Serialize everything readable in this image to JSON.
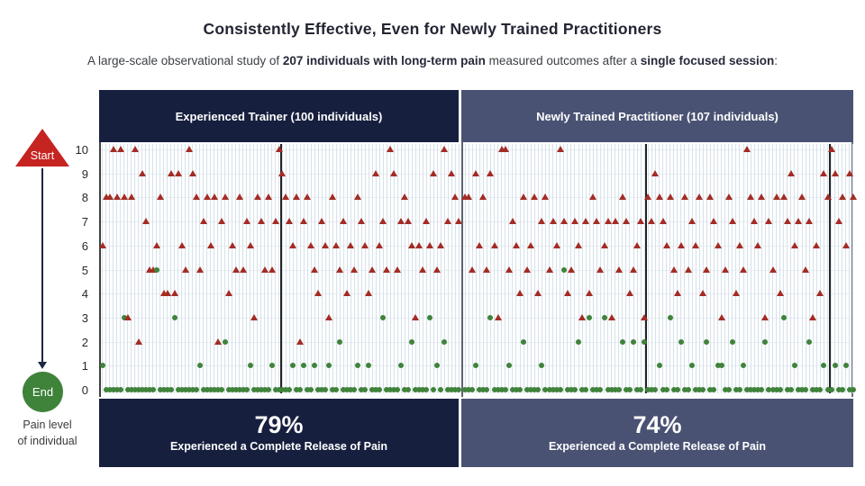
{
  "title": "Consistently Effective, Even for Newly Trained Practitioners",
  "subtitle": {
    "pre": "A large-scale observational study of ",
    "bold1": "207 individuals with long-term pain",
    "mid": " measured outcomes after a ",
    "bold2": "single focused session",
    "post": ":"
  },
  "legend": {
    "start_label": "Start",
    "end_label": "End",
    "caption_line1": "Pain level",
    "caption_line2": "of individual",
    "start_marker": "red-triangle",
    "end_marker": "green-circle"
  },
  "colors": {
    "navy_panel": "#161f3e",
    "slate_panel": "#4a5273",
    "start_marker_red": "#a32c24",
    "legend_red": "#c62420",
    "end_marker_green": "#3f833a"
  },
  "chart_data": {
    "type": "scatter",
    "title": "Consistently Effective, Even for Newly Trained Practitioners",
    "ylabel": "Pain level of individual",
    "ylim": [
      0,
      10
    ],
    "y_ticks": [
      10,
      9,
      8,
      7,
      6,
      5,
      4,
      3,
      2,
      1,
      0
    ],
    "grid": true,
    "marker_note": "red triangle = pain level before session (Start), green circle = pain level after session (End); one vertical strip per individual; dark vertical rules every 50 individuals",
    "panels": [
      {
        "label": "Experienced Trainer (100 individuals)",
        "n": 100,
        "pct": "79%",
        "caption": "Experienced a Complete Release of Pain",
        "separators_after": [
          50
        ],
        "individuals": [
          [
            6,
            1
          ],
          [
            8,
            0
          ],
          [
            8,
            0
          ],
          [
            10,
            0
          ],
          [
            8,
            0
          ],
          [
            10,
            0
          ],
          [
            8,
            3
          ],
          [
            3,
            0
          ],
          [
            8,
            0
          ],
          [
            10,
            0
          ],
          [
            2,
            0
          ],
          [
            9,
            0
          ],
          [
            7,
            0
          ],
          [
            5,
            0
          ],
          [
            5,
            0
          ],
          [
            6,
            5
          ],
          [
            8,
            0
          ],
          [
            4,
            0
          ],
          [
            4,
            0
          ],
          [
            9,
            0
          ],
          [
            4,
            3
          ],
          [
            9,
            0
          ],
          [
            6,
            0
          ],
          [
            5,
            0
          ],
          [
            10,
            0
          ],
          [
            9,
            0
          ],
          [
            8,
            0
          ],
          [
            5,
            1
          ],
          [
            7,
            0
          ],
          [
            8,
            0
          ],
          [
            6,
            0
          ],
          [
            8,
            0
          ],
          [
            2,
            0
          ],
          [
            7,
            0
          ],
          [
            8,
            2
          ],
          [
            4,
            0
          ],
          [
            6,
            0
          ],
          [
            5,
            0
          ],
          [
            8,
            0
          ],
          [
            5,
            0
          ],
          [
            7,
            0
          ],
          [
            6,
            1
          ],
          [
            3,
            0
          ],
          [
            8,
            0
          ],
          [
            7,
            0
          ],
          [
            5,
            0
          ],
          [
            8,
            0
          ],
          [
            5,
            1
          ],
          [
            7,
            0
          ],
          [
            10,
            0
          ],
          [
            9,
            0
          ],
          [
            8,
            0
          ],
          [
            7,
            0
          ],
          [
            6,
            1
          ],
          [
            8,
            0
          ],
          [
            2,
            0
          ],
          [
            7,
            1
          ],
          [
            8,
            0
          ],
          [
            6,
            0
          ],
          [
            5,
            1
          ],
          [
            4,
            0
          ],
          [
            7,
            0
          ],
          [
            6,
            0
          ],
          [
            3,
            1
          ],
          [
            8,
            0
          ],
          [
            6,
            0
          ],
          [
            5,
            2
          ],
          [
            7,
            0
          ],
          [
            4,
            0
          ],
          [
            6,
            0
          ],
          [
            5,
            0
          ],
          [
            8,
            1
          ],
          [
            7,
            0
          ],
          [
            6,
            0
          ],
          [
            4,
            1
          ],
          [
            5,
            0
          ],
          [
            9,
            0
          ],
          [
            6,
            0
          ],
          [
            7,
            3
          ],
          [
            5,
            0
          ],
          [
            10,
            0
          ],
          [
            9,
            0
          ],
          [
            5,
            0
          ],
          [
            7,
            1
          ],
          [
            8,
            0
          ],
          [
            7,
            0
          ],
          [
            6,
            2
          ],
          [
            3,
            0
          ],
          [
            6,
            0
          ],
          [
            5,
            0
          ],
          [
            7,
            0
          ],
          [
            6,
            3
          ],
          [
            9,
            0
          ],
          [
            5,
            1
          ],
          [
            6,
            0
          ],
          [
            10,
            2
          ],
          [
            7,
            0
          ],
          [
            9,
            0
          ],
          [
            8,
            0
          ],
          [
            7,
            0
          ]
        ]
      },
      {
        "label": "Newly Trained Practitioner (107 individuals)",
        "n": 107,
        "pct": "74%",
        "caption": "Experienced a Complete Release of Pain",
        "separators_after": [
          50,
          100
        ],
        "individuals": [
          [
            8,
            0
          ],
          [
            8,
            0
          ],
          [
            5,
            0
          ],
          [
            9,
            1
          ],
          [
            6,
            0
          ],
          [
            8,
            0
          ],
          [
            5,
            0
          ],
          [
            9,
            3
          ],
          [
            6,
            0
          ],
          [
            3,
            0
          ],
          [
            10,
            0
          ],
          [
            10,
            0
          ],
          [
            5,
            1
          ],
          [
            7,
            0
          ],
          [
            6,
            0
          ],
          [
            4,
            0
          ],
          [
            8,
            2
          ],
          [
            5,
            0
          ],
          [
            6,
            0
          ],
          [
            8,
            0
          ],
          [
            4,
            0
          ],
          [
            7,
            1
          ],
          [
            8,
            0
          ],
          [
            5,
            0
          ],
          [
            7,
            0
          ],
          [
            6,
            0
          ],
          [
            10,
            0
          ],
          [
            7,
            5
          ],
          [
            4,
            0
          ],
          [
            5,
            0
          ],
          [
            7,
            0
          ],
          [
            6,
            2
          ],
          [
            3,
            0
          ],
          [
            7,
            0
          ],
          [
            4,
            3
          ],
          [
            8,
            0
          ],
          [
            7,
            0
          ],
          [
            5,
            0
          ],
          [
            6,
            3
          ],
          [
            7,
            0
          ],
          [
            3,
            0
          ],
          [
            7,
            0
          ],
          [
            5,
            0
          ],
          [
            8,
            2
          ],
          [
            7,
            0
          ],
          [
            4,
            0
          ],
          [
            5,
            2
          ],
          [
            6,
            0
          ],
          [
            7,
            0
          ],
          [
            3,
            2
          ],
          [
            8,
            0
          ],
          [
            7,
            0
          ],
          [
            9,
            0
          ],
          [
            8,
            1
          ],
          [
            7,
            0
          ],
          [
            6,
            0
          ],
          [
            8,
            3
          ],
          [
            5,
            0
          ],
          [
            4,
            0
          ],
          [
            6,
            2
          ],
          [
            8,
            0
          ],
          [
            5,
            0
          ],
          [
            7,
            1
          ],
          [
            6,
            0
          ],
          [
            8,
            0
          ],
          [
            4,
            0
          ],
          [
            5,
            2
          ],
          [
            8,
            0
          ],
          [
            7,
            0
          ],
          [
            6,
            1
          ],
          [
            3,
            1
          ],
          [
            5,
            0
          ],
          [
            8,
            0
          ],
          [
            7,
            2
          ],
          [
            4,
            0
          ],
          [
            6,
            0
          ],
          [
            5,
            1
          ],
          [
            10,
            0
          ],
          [
            8,
            0
          ],
          [
            7,
            0
          ],
          [
            6,
            0
          ],
          [
            8,
            0
          ],
          [
            3,
            2
          ],
          [
            7,
            0
          ],
          [
            5,
            0
          ],
          [
            8,
            0
          ],
          [
            4,
            0
          ],
          [
            8,
            3
          ],
          [
            7,
            0
          ],
          [
            9,
            0
          ],
          [
            6,
            1
          ],
          [
            7,
            0
          ],
          [
            8,
            0
          ],
          [
            5,
            0
          ],
          [
            7,
            2
          ],
          [
            3,
            0
          ],
          [
            6,
            0
          ],
          [
            4,
            0
          ],
          [
            9,
            1
          ],
          [
            8,
            0
          ],
          [
            10,
            0
          ],
          [
            9,
            1
          ],
          [
            7,
            0
          ],
          [
            8,
            0
          ],
          [
            6,
            1
          ],
          [
            9,
            0
          ],
          [
            8,
            0
          ]
        ]
      }
    ]
  }
}
